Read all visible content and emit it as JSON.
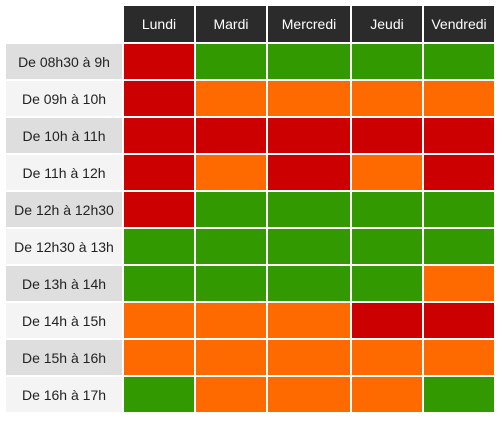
{
  "days": [
    "Lundi",
    "Mardi",
    "Mercredi",
    "Jeudi",
    "Vendredi"
  ],
  "legend_colors": {
    "r": "#cc0000",
    "o": "#ff6a00",
    "g": "#339900"
  },
  "rows": [
    {
      "slot": "De 08h30 à 9h",
      "status": [
        "r",
        "g",
        "g",
        "g",
        "g"
      ]
    },
    {
      "slot": "De 09h à 10h",
      "status": [
        "r",
        "o",
        "o",
        "o",
        "o"
      ]
    },
    {
      "slot": "De 10h à 11h",
      "status": [
        "r",
        "r",
        "r",
        "r",
        "r"
      ]
    },
    {
      "slot": "De 11h à 12h",
      "status": [
        "r",
        "o",
        "r",
        "o",
        "r"
      ]
    },
    {
      "slot": "De 12h à 12h30",
      "status": [
        "r",
        "g",
        "g",
        "g",
        "g"
      ]
    },
    {
      "slot": "De 12h30 à 13h",
      "status": [
        "g",
        "g",
        "g",
        "g",
        "g"
      ]
    },
    {
      "slot": "De 13h à 14h",
      "status": [
        "g",
        "g",
        "g",
        "g",
        "o"
      ]
    },
    {
      "slot": "De 14h à 15h",
      "status": [
        "o",
        "o",
        "o",
        "r",
        "r"
      ]
    },
    {
      "slot": "De 15h à 16h",
      "status": [
        "o",
        "o",
        "o",
        "o",
        "o"
      ]
    },
    {
      "slot": "De 16h à 17h",
      "status": [
        "g",
        "o",
        "o",
        "o",
        "g"
      ]
    }
  ]
}
